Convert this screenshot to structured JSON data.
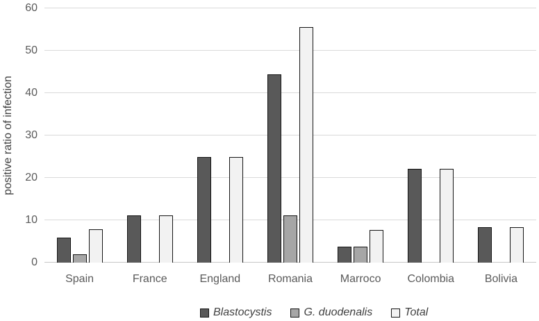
{
  "chart_data": {
    "type": "bar",
    "title": "",
    "xlabel": "",
    "ylabel": "positive ratio of infection",
    "categories": [
      "Spain",
      "France",
      "England",
      "Romania",
      "Marroco",
      "Colombia",
      "Bolivia"
    ],
    "series": [
      {
        "name": "Blastocystis",
        "color": "#595959",
        "values": [
          5.9,
          11.1,
          25,
          44.4,
          3.8,
          22.2,
          8.3
        ]
      },
      {
        "name": "G. duodenalis",
        "color": "#a6a6a6",
        "values": [
          2.0,
          0,
          0,
          11.1,
          3.8,
          0,
          0
        ]
      },
      {
        "name": "Total",
        "color": "#f2f2f2",
        "values": [
          7.8,
          11.1,
          25,
          55.6,
          7.7,
          22.2,
          8.3
        ]
      }
    ],
    "y_ticks": [
      0,
      10,
      20,
      30,
      40,
      50,
      60
    ],
    "ylim": [
      0,
      60
    ],
    "grid": true,
    "legend_position": "bottom",
    "legend_style": "italic",
    "bar_border_color": "#141414",
    "gridline_color": "#d9d9d9",
    "axis_text_color": "#595959"
  }
}
